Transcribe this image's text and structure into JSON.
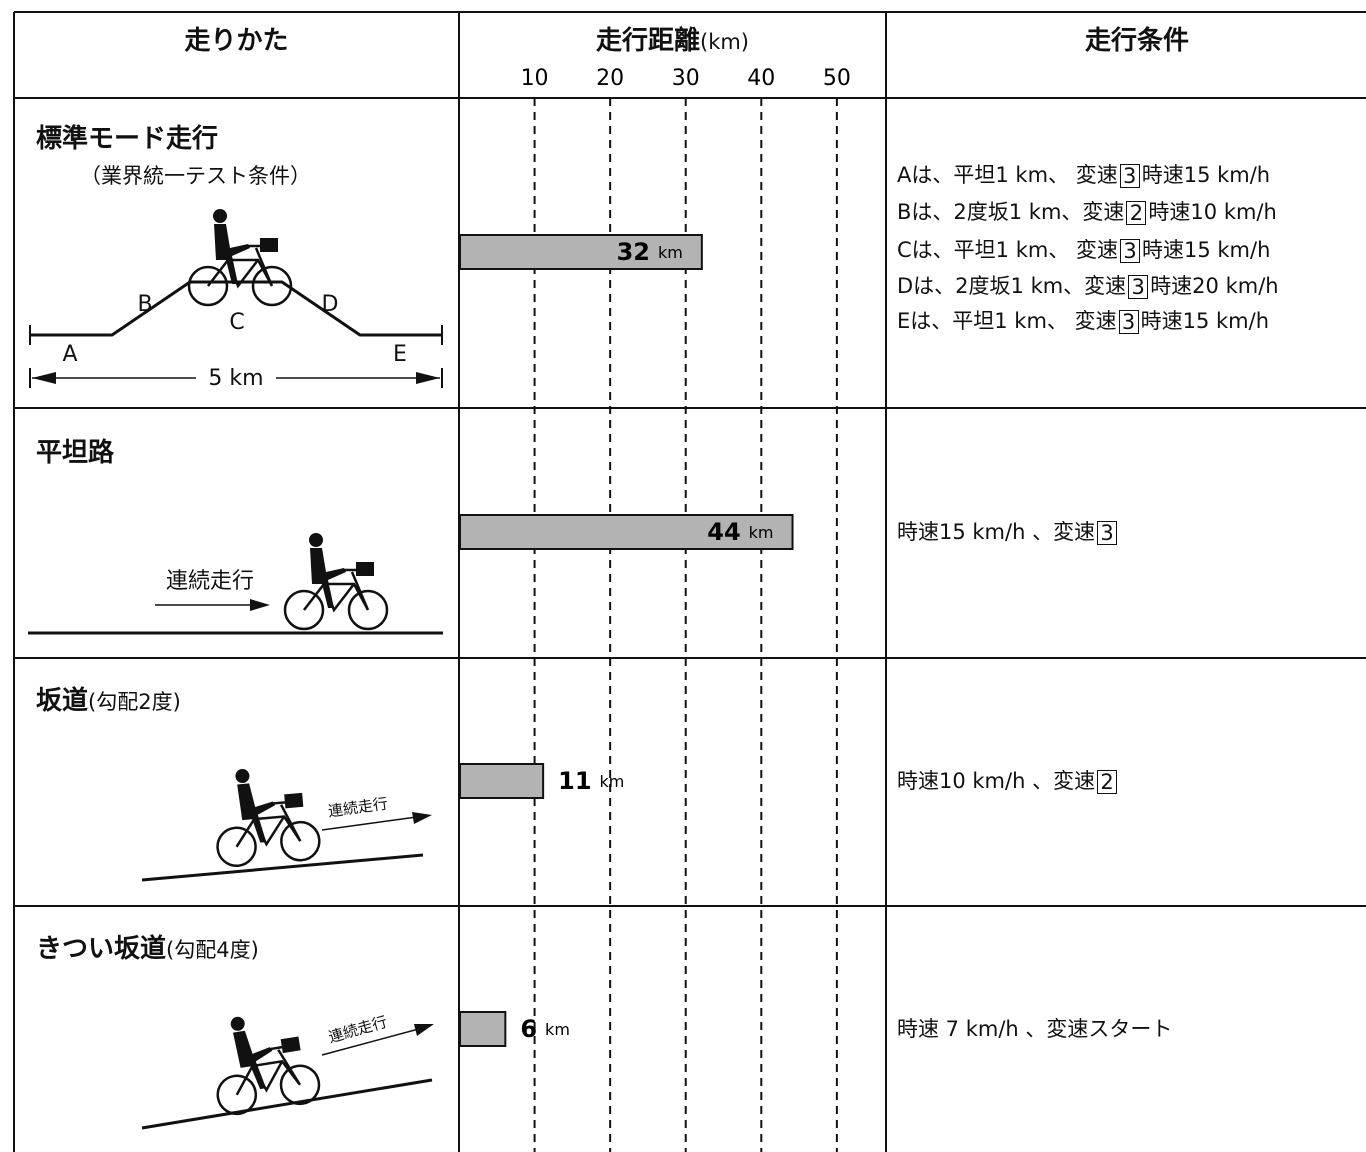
{
  "header": {
    "method": "走りかた",
    "distance": "走行距離",
    "distance_unit": "(km)",
    "conditions": "走行条件"
  },
  "chart_data": {
    "type": "bar",
    "xlim": [
      0,
      56.5
    ],
    "xticks": [
      10,
      20,
      30,
      40,
      50
    ],
    "unit": "km",
    "values": [
      32,
      44,
      11,
      6
    ],
    "color": "#b3b3b3"
  },
  "rows": [
    {
      "title": "標準モード走行",
      "note": "（業界統一テスト条件）",
      "diagram": {
        "labels": [
          "A",
          "B",
          "C",
          "D",
          "E"
        ],
        "span": "5 km"
      },
      "conditions": [
        [
          {
            "text": "Aは、平坦1 km、 変速"
          },
          {
            "boxed": "3"
          },
          {
            "text": "時速15 km/h"
          }
        ],
        [
          {
            "text": "Bは、2度坂1 km、変速"
          },
          {
            "boxed": "2"
          },
          {
            "text": "時速10 km/h"
          }
        ],
        [
          {
            "text": "Cは、平坦1 km、 変速"
          },
          {
            "boxed": "3"
          },
          {
            "text": "時速15 km/h"
          }
        ],
        [
          {
            "text": "Dは、2度坂1 km、変速"
          },
          {
            "boxed": "3"
          },
          {
            "text": "時速20 km/h"
          }
        ],
        [
          {
            "text": "Eは、平坦1 km、 変速"
          },
          {
            "boxed": "3"
          },
          {
            "text": "時速15 km/h"
          }
        ]
      ]
    },
    {
      "title": "平坦路",
      "diagram": {
        "caption": "連続走行"
      },
      "conditions": [
        [
          {
            "text": "時速15 km/h 、変速"
          },
          {
            "boxed": "3"
          }
        ]
      ]
    },
    {
      "title": "坂道",
      "note": "(勾配2度)",
      "diagram": {
        "caption": "連続走行"
      },
      "conditions": [
        [
          {
            "text": "時速10 km/h 、変速"
          },
          {
            "boxed": "2"
          }
        ]
      ]
    },
    {
      "title": "きつい坂道",
      "note": "(勾配4度)",
      "diagram": {
        "caption": "連続走行"
      },
      "conditions": [
        [
          {
            "text": "時速 7 km/h 、変速スタート"
          }
        ]
      ]
    }
  ]
}
